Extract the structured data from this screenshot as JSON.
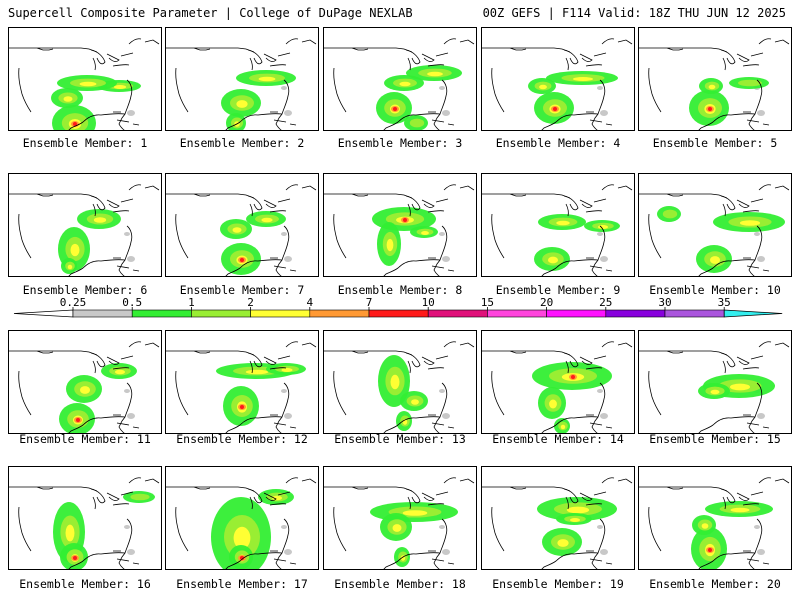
{
  "header": {
    "left": "Supercell Composite Parameter | College of DuPage NEXLAB",
    "right": "00Z GEFS | F114 Valid: 18Z THU JUN 12 2025"
  },
  "colorbar": {
    "ticks": [
      "0.25",
      "0.5",
      "1",
      "2",
      "4",
      "7",
      "10",
      "15",
      "20",
      "25",
      "30",
      "35"
    ],
    "colors": [
      "#ffffff",
      "#c8c8c8",
      "#33ee33",
      "#99ee33",
      "#ffff33",
      "#ff9933",
      "#ff1a1a",
      "#e0107a",
      "#ff44dd",
      "#ff11ff",
      "#8800dd",
      "#aa55dd",
      "#33eeee"
    ]
  },
  "members": [
    {
      "label": "Ensemble Member: 1"
    },
    {
      "label": "Ensemble Member: 2"
    },
    {
      "label": "Ensemble Member: 3"
    },
    {
      "label": "Ensemble Member: 4"
    },
    {
      "label": "Ensemble Member: 5"
    },
    {
      "label": "Ensemble Member: 6"
    },
    {
      "label": "Ensemble Member: 7"
    },
    {
      "label": "Ensemble Member: 8"
    },
    {
      "label": "Ensemble Member: 9"
    },
    {
      "label": "Ensemble Member: 10"
    },
    {
      "label": "Ensemble Member: 11"
    },
    {
      "label": "Ensemble Member: 12"
    },
    {
      "label": "Ensemble Member: 13"
    },
    {
      "label": "Ensemble Member: 14"
    },
    {
      "label": "Ensemble Member: 15"
    },
    {
      "label": "Ensemble Member: 16"
    },
    {
      "label": "Ensemble Member: 17"
    },
    {
      "label": "Ensemble Member: 18"
    },
    {
      "label": "Ensemble Member: 19"
    },
    {
      "label": "Ensemble Member: 20"
    }
  ]
}
